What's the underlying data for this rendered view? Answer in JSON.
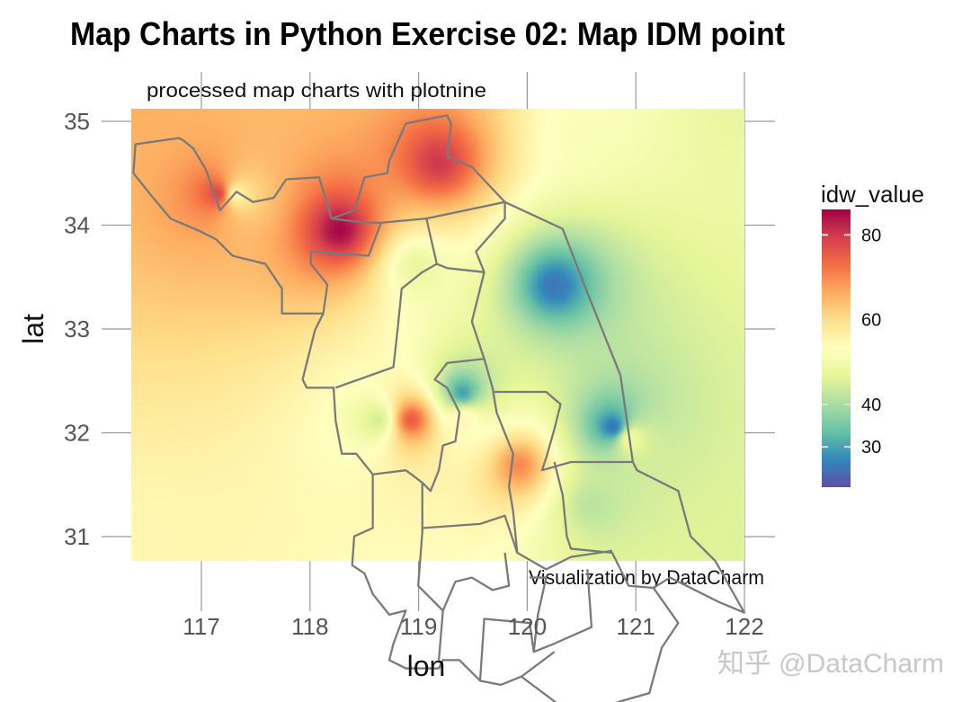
{
  "chart_data": {
    "type": "heatmap",
    "title": "Map Charts in Python Exercise 02: Map IDM point",
    "subtitle": "processed map charts with plotnine",
    "caption": "Visualization by DataCharm",
    "xlabel": "lon",
    "ylabel": "lat",
    "xlim": [
      116.35,
      122.0
    ],
    "ylim": [
      30.76,
      35.12
    ],
    "x_ticks": [
      117,
      118,
      119,
      120,
      121,
      122
    ],
    "y_ticks": [
      31,
      32,
      33,
      34,
      35
    ],
    "grid": true,
    "legend": {
      "title": "idw_value",
      "position": "right",
      "range": [
        20.5,
        86
      ],
      "ticks": [
        30,
        40,
        60,
        80
      ],
      "colormap": "Spectral (reversed)",
      "colors": [
        "#5e4fa2",
        "#3288bd",
        "#66c2a5",
        "#abdda4",
        "#e6f598",
        "#ffffbf",
        "#fee08b",
        "#fdae61",
        "#f46d43",
        "#d53e4f",
        "#9e0142"
      ]
    },
    "points": [
      {
        "lon": 117.15,
        "lat": 34.31,
        "value": 78
      },
      {
        "lon": 117.31,
        "lat": 34.3,
        "value": 55
      },
      {
        "lon": 118.27,
        "lat": 33.96,
        "value": 85
      },
      {
        "lon": 119.18,
        "lat": 34.61,
        "value": 80
      },
      {
        "lon": 120.25,
        "lat": 33.42,
        "value": 25
      },
      {
        "lon": 120.79,
        "lat": 32.06,
        "value": 25
      },
      {
        "lon": 119.4,
        "lat": 32.39,
        "value": 30
      },
      {
        "lon": 118.93,
        "lat": 32.13,
        "value": 75
      },
      {
        "lon": 119.92,
        "lat": 31.69,
        "value": 70
      },
      {
        "lon": 118.98,
        "lat": 33.6,
        "value": 48
      },
      {
        "lon": 118.62,
        "lat": 32.13,
        "value": 45
      },
      {
        "lon": 119.42,
        "lat": 32.13,
        "value": 55
      },
      {
        "lon": 120.94,
        "lat": 31.95,
        "value": 50
      },
      {
        "lon": 120.6,
        "lat": 31.32,
        "value": 42
      },
      {
        "lon": 116.5,
        "lat": 35.0,
        "value": 66
      },
      {
        "lon": 116.5,
        "lat": 31.0,
        "value": 55
      },
      {
        "lon": 121.9,
        "lat": 31.0,
        "value": 46
      },
      {
        "lon": 121.9,
        "lat": 35.0,
        "value": 48
      },
      {
        "lon": 120.5,
        "lat": 34.9,
        "value": 52
      }
    ]
  },
  "watermark": "知乎 @DataCharm"
}
